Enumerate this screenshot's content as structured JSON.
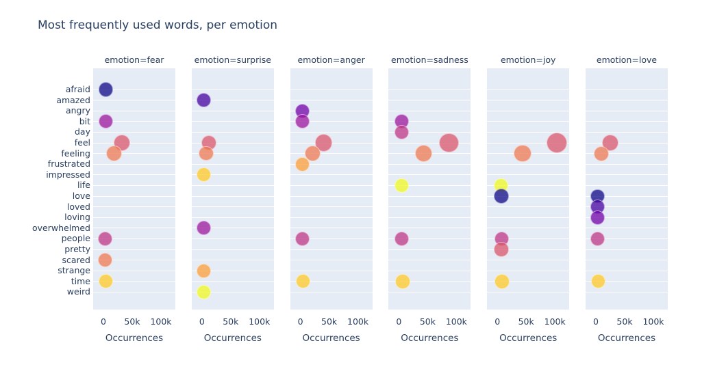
{
  "title": "Most frequently used words, per emotion",
  "style": {
    "page_bg": "#ffffff",
    "panel_bg": "#E5ECF6",
    "gridline_color": "#ffffff",
    "text_color": "#2a3f5f",
    "marker_opacity": 0.75,
    "palette": [
      "#0d0887",
      "#46039f",
      "#7201a8",
      "#9c179e",
      "#bd3786",
      "#d8576b",
      "#ed7953",
      "#fb9f3a",
      "#fdca26",
      "#f0f921"
    ],
    "palette_rule": "color = palette[word_index % 10]"
  },
  "chart_data": {
    "type": "scatter",
    "layout": "6 facet columns, shared category y-axis, horizontal gridlines only, no legend",
    "title": "Most frequently used words, per emotion",
    "xlabel": "Occurrences",
    "ylabel": "",
    "xlim": [
      -18000,
      125000
    ],
    "x_ticks": [
      {
        "value": 0,
        "label": "0"
      },
      {
        "value": 50000,
        "label": "50k"
      },
      {
        "value": 100000,
        "label": "100k"
      }
    ],
    "categories": [
      "afraid",
      "amazed",
      "angry",
      "bit",
      "day",
      "feel",
      "feeling",
      "frustrated",
      "impressed",
      "life",
      "love",
      "loved",
      "loving",
      "overwhelmed",
      "people",
      "pretty",
      "scared",
      "strange",
      "time",
      "weird"
    ],
    "facets": [
      {
        "title": "emotion=fear",
        "points": [
          {
            "word": "afraid",
            "value": 4000
          },
          {
            "word": "bit",
            "value": 4500
          },
          {
            "word": "feel",
            "value": 32000
          },
          {
            "word": "feeling",
            "value": 19000
          },
          {
            "word": "people",
            "value": 3500
          },
          {
            "word": "scared",
            "value": 3500
          },
          {
            "word": "time",
            "value": 4000
          }
        ]
      },
      {
        "title": "emotion=surprise",
        "points": [
          {
            "word": "amazed",
            "value": 3000
          },
          {
            "word": "feel",
            "value": 12000
          },
          {
            "word": "feeling",
            "value": 7500
          },
          {
            "word": "impressed",
            "value": 3000
          },
          {
            "word": "overwhelmed",
            "value": 3000
          },
          {
            "word": "strange",
            "value": 3000
          },
          {
            "word": "weird",
            "value": 3000
          }
        ]
      },
      {
        "title": "emotion=anger",
        "points": [
          {
            "word": "angry",
            "value": 4000
          },
          {
            "word": "bit",
            "value": 4000
          },
          {
            "word": "feel",
            "value": 40000
          },
          {
            "word": "feeling",
            "value": 21000
          },
          {
            "word": "frustrated",
            "value": 3000
          },
          {
            "word": "people",
            "value": 4000
          },
          {
            "word": "time",
            "value": 4500
          }
        ]
      },
      {
        "title": "emotion=sadness",
        "points": [
          {
            "word": "bit",
            "value": 5000
          },
          {
            "word": "day",
            "value": 5000
          },
          {
            "word": "feel",
            "value": 87000
          },
          {
            "word": "feeling",
            "value": 43000
          },
          {
            "word": "life",
            "value": 5000
          },
          {
            "word": "people",
            "value": 5000
          },
          {
            "word": "time",
            "value": 6500
          }
        ]
      },
      {
        "title": "emotion=joy",
        "points": [
          {
            "word": "feel",
            "value": 103000
          },
          {
            "word": "feeling",
            "value": 44000
          },
          {
            "word": "life",
            "value": 6500
          },
          {
            "word": "love",
            "value": 7000
          },
          {
            "word": "people",
            "value": 7500
          },
          {
            "word": "pretty",
            "value": 7000
          },
          {
            "word": "time",
            "value": 8500
          }
        ]
      },
      {
        "title": "emotion=love",
        "points": [
          {
            "word": "feel",
            "value": 25000
          },
          {
            "word": "feeling",
            "value": 10000
          },
          {
            "word": "love",
            "value": 3500
          },
          {
            "word": "loved",
            "value": 3500
          },
          {
            "word": "loving",
            "value": 3500
          },
          {
            "word": "people",
            "value": 3500
          },
          {
            "word": "time",
            "value": 4500
          }
        ]
      }
    ]
  }
}
